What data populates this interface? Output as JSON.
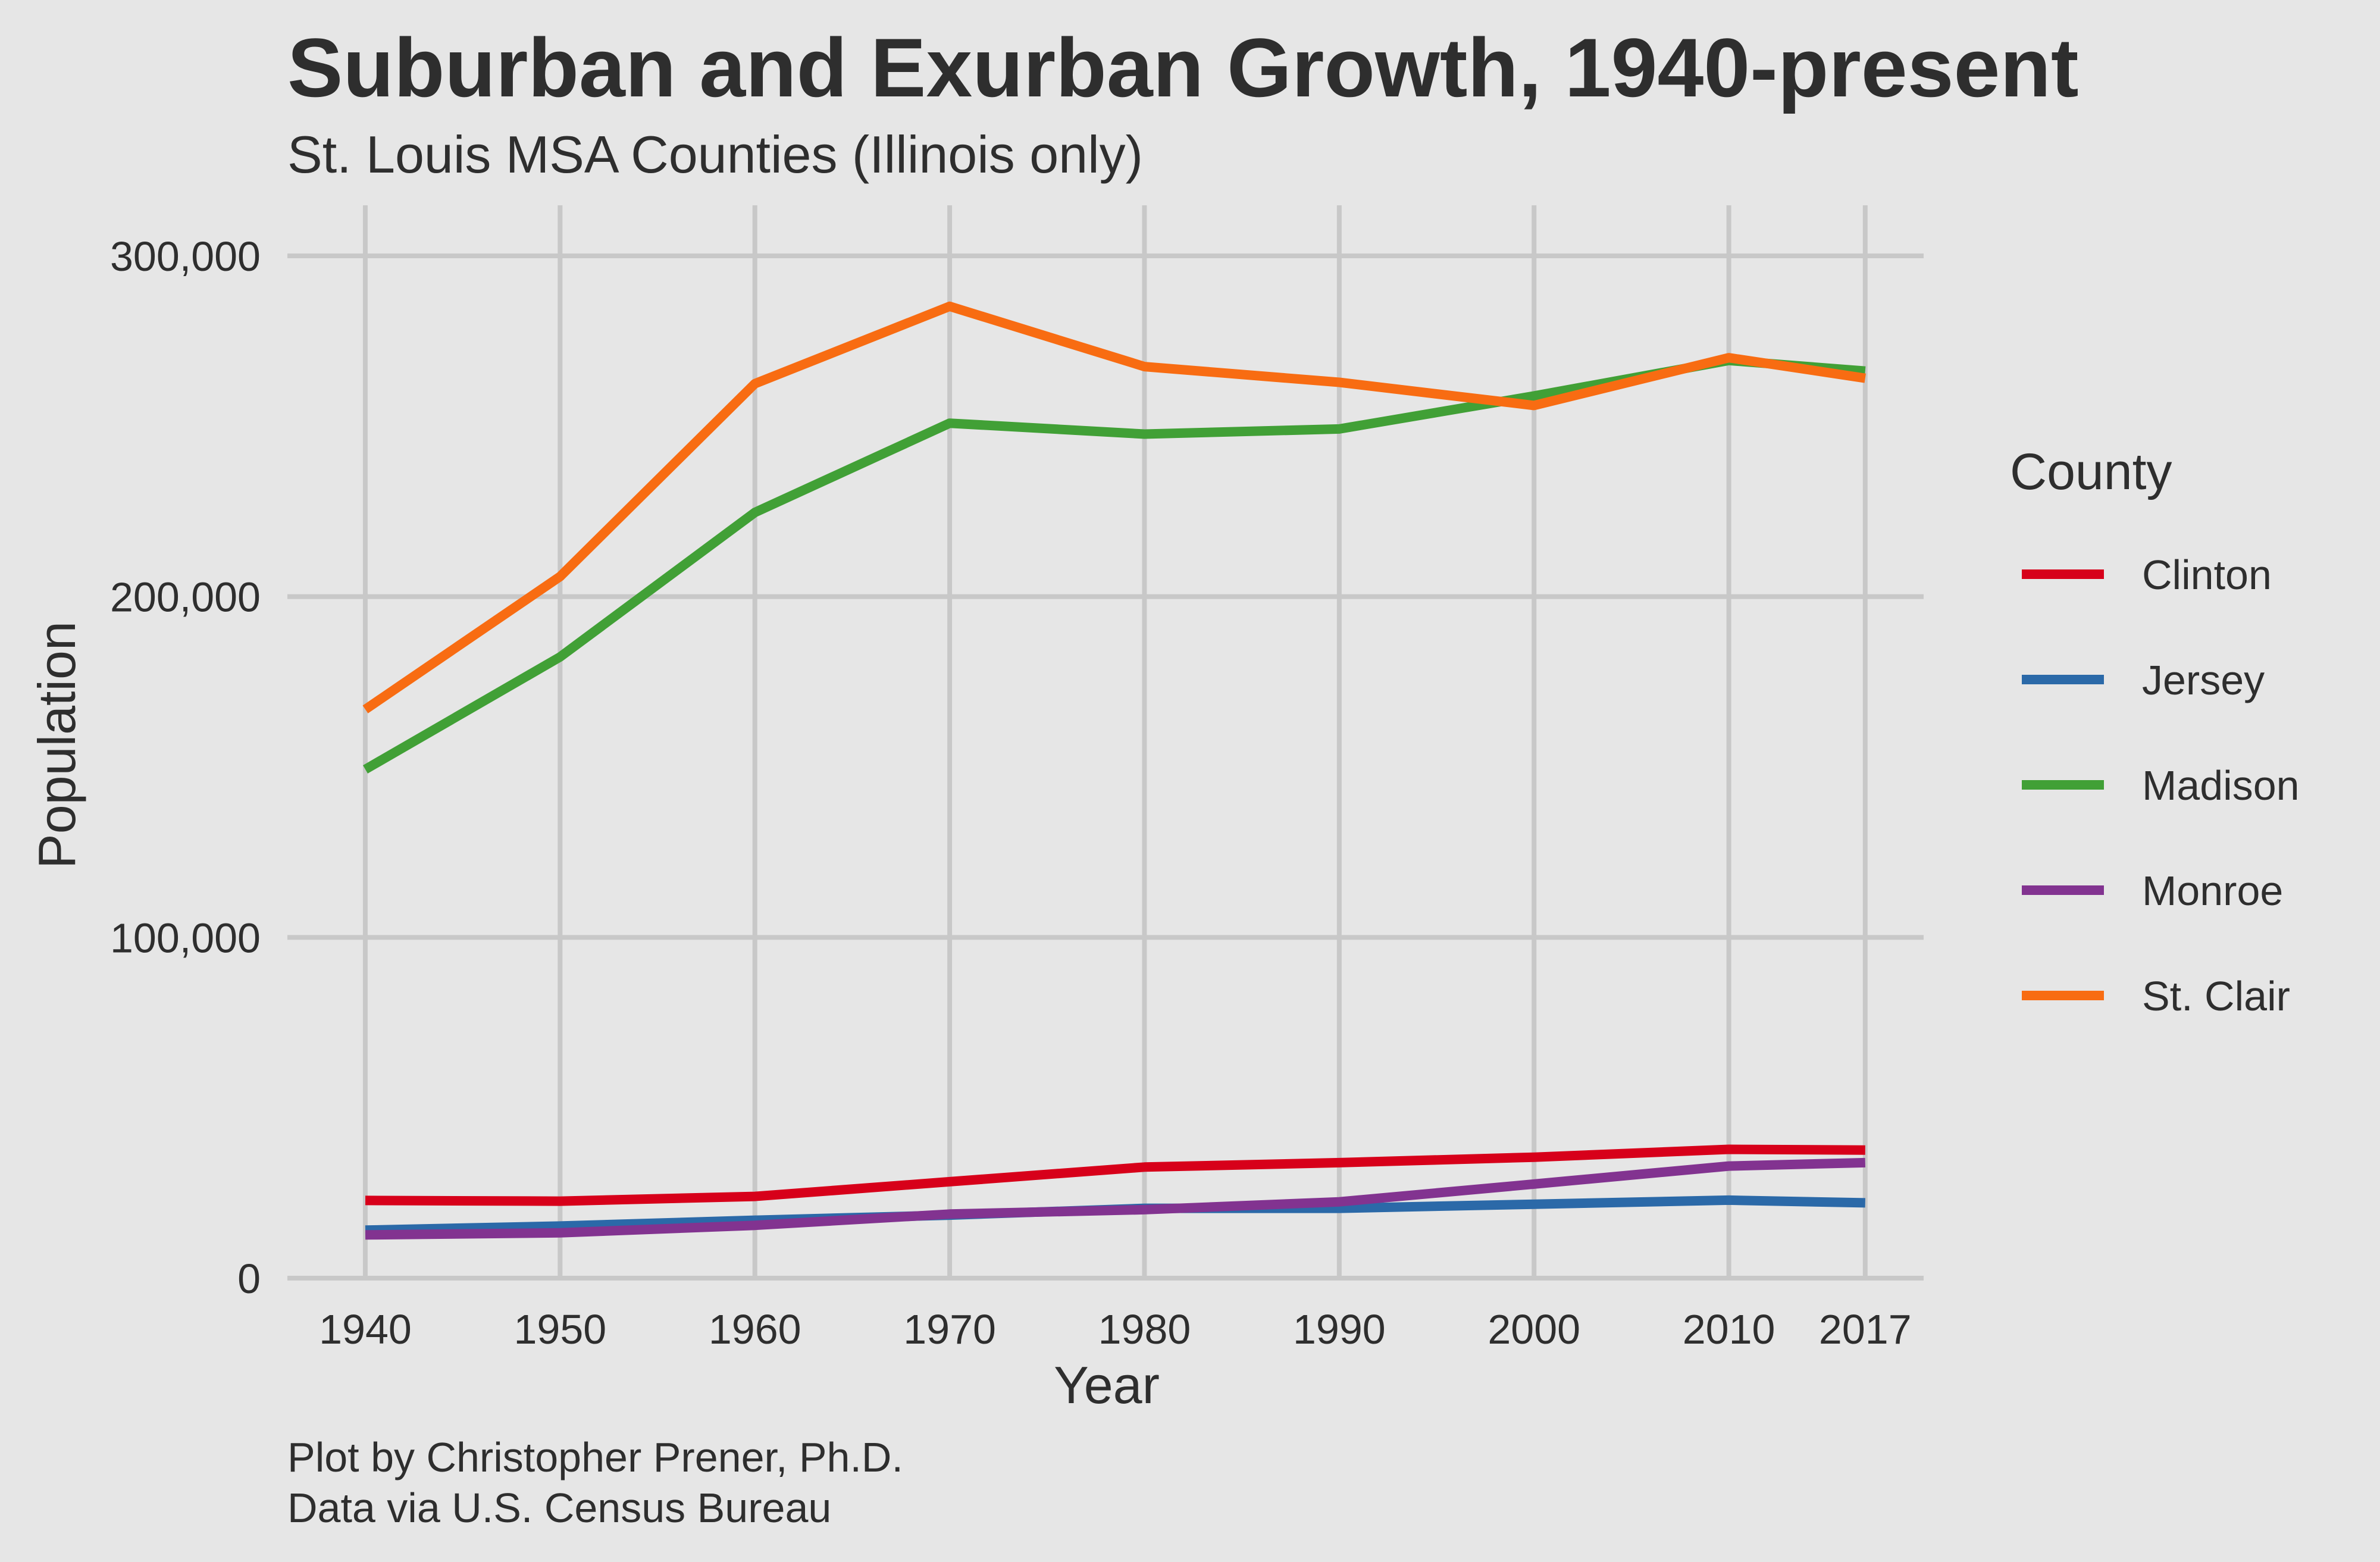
{
  "chart_data": {
    "type": "line",
    "title": "Suburban and Exurban Growth, 1940-present",
    "subtitle": "St. Louis MSA Counties (Illinois only)",
    "xlabel": "Year",
    "ylabel": "Population",
    "x": [
      1940,
      1950,
      1960,
      1970,
      1980,
      1990,
      2000,
      2010,
      2017
    ],
    "x_ticks": [
      "1940",
      "1950",
      "1960",
      "1970",
      "1980",
      "1990",
      "2000",
      "2010",
      "2017"
    ],
    "xlim": [
      1936,
      2020
    ],
    "ylim": [
      0,
      300000
    ],
    "y_ticks": [
      0,
      100000,
      200000,
      300000
    ],
    "y_tick_labels": [
      "0",
      "100,000",
      "200,000",
      "300,000"
    ],
    "grid": true,
    "legend": {
      "title": "County",
      "placement": "right"
    },
    "series": [
      {
        "name": "Clinton",
        "color": "#d7001a",
        "values": [
          22800,
          22600,
          24000,
          28300,
          32600,
          33900,
          35500,
          37800,
          37600
        ]
      },
      {
        "name": "Jersey",
        "color": "#2b69a8",
        "values": [
          14100,
          15300,
          17000,
          18500,
          20500,
          20500,
          21700,
          22900,
          22100
        ]
      },
      {
        "name": "Madison",
        "color": "#41a036",
        "values": [
          149300,
          182300,
          224700,
          250900,
          247700,
          249200,
          258900,
          269300,
          266200
        ]
      },
      {
        "name": "Monroe",
        "color": "#823390",
        "values": [
          12700,
          13300,
          15500,
          18800,
          20100,
          22400,
          27600,
          32900,
          33900
        ]
      },
      {
        "name": "St. Clair",
        "color": "#f86c12",
        "values": [
          166900,
          205900,
          262500,
          285200,
          267500,
          262900,
          256100,
          270100,
          264100
        ]
      }
    ],
    "caption": [
      "Plot by Christopher Prener, Ph.D.",
      "Data via U.S. Census Bureau"
    ]
  }
}
